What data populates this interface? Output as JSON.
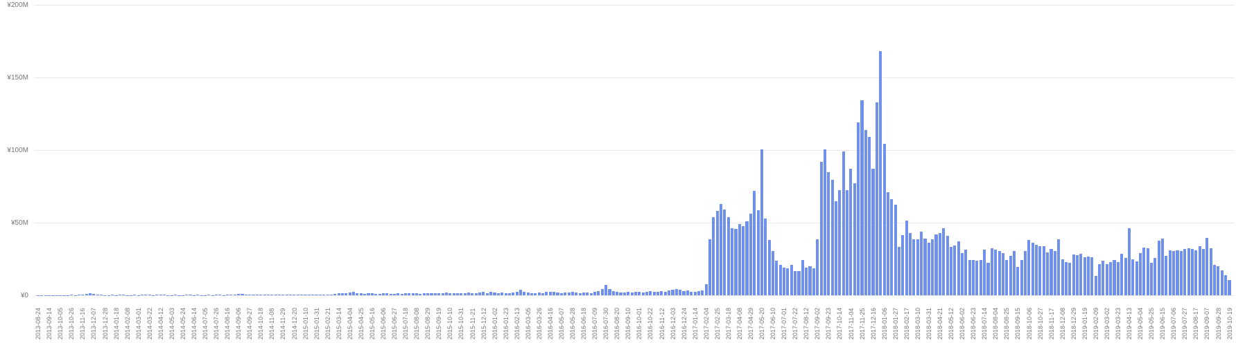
{
  "chart_data": {
    "type": "bar",
    "title": "",
    "unit": "JPY millions (M)",
    "legend": "none",
    "grid": "horizontal-only",
    "bar_color": "#7090ee",
    "gridline_color": "#e8e8e8",
    "axis_text_color": "#757575",
    "background_color": "#ffffff",
    "y_axis": {
      "min": 0,
      "max": 200,
      "tick_step_millions": 50,
      "tick_labels": [
        "¥200M",
        "¥150M",
        "¥100M",
        "¥50M",
        "¥0"
      ]
    },
    "x_axis": {
      "start_date": "2013-08-24",
      "bar_interval_days": 7,
      "label_every_n_bars": 3,
      "tick_labels": [
        "2013-08-24",
        "2013-09-14",
        "2013-10-05",
        "2013-10-26",
        "2013-11-16",
        "2013-12-07",
        "2013-12-28",
        "2014-01-18",
        "2014-02-08",
        "2014-03-01",
        "2014-03-22",
        "2014-04-12",
        "2014-05-03",
        "2014-05-24",
        "2014-06-14",
        "2014-07-05",
        "2014-07-26",
        "2014-08-16",
        "2014-09-06",
        "2014-09-27",
        "2014-10-18",
        "2014-11-08",
        "2014-11-29",
        "2014-12-20",
        "2015-01-10",
        "2015-01-31",
        "2015-02-21",
        "2015-03-14",
        "2015-04-04",
        "2015-04-25",
        "2015-05-16",
        "2015-06-06",
        "2015-06-27",
        "2015-07-18",
        "2015-08-08",
        "2015-08-29",
        "2015-09-19",
        "2015-10-10",
        "2015-10-31",
        "2015-11-21",
        "2015-12-12",
        "2016-01-02",
        "2016-01-23",
        "2016-02-13",
        "2016-03-05",
        "2016-03-26",
        "2016-04-16",
        "2016-05-07",
        "2016-05-28",
        "2016-06-18",
        "2016-07-09",
        "2016-07-30",
        "2016-08-20",
        "2016-09-10",
        "2016-10-01",
        "2016-10-22",
        "2016-11-12",
        "2016-12-03",
        "2016-12-24",
        "2017-01-14",
        "2017-02-04",
        "2017-02-25",
        "2017-03-18",
        "2017-04-08",
        "2017-04-29",
        "2017-05-20",
        "2017-06-10",
        "2017-07-01",
        "2017-07-22",
        "2017-08-12",
        "2017-09-02",
        "2017-09-23",
        "2017-10-14",
        "2017-11-04",
        "2017-11-25",
        "2017-12-16",
        "2018-01-06",
        "2018-01-27",
        "2018-02-17",
        "2018-03-10",
        "2018-03-31",
        "2018-04-21",
        "2018-05-12",
        "2018-06-02",
        "2018-06-23",
        "2018-07-14",
        "2018-08-04",
        "2018-08-25",
        "2018-09-15",
        "2018-10-06",
        "2018-10-27",
        "2018-11-17",
        "2018-12-08",
        "2018-12-29",
        "2019-01-19",
        "2019-02-09",
        "2019-03-02",
        "2019-03-23",
        "2019-04-13",
        "2019-05-04",
        "2019-05-25",
        "2019-06-15",
        "2019-07-06",
        "2019-07-27",
        "2019-08-17",
        "2019-09-07",
        "2019-09-28",
        "2019-10-19"
      ]
    },
    "values_millions": [
      0.1,
      0.1,
      0.15,
      0.2,
      0.1,
      0.1,
      0.2,
      0.15,
      0.1,
      0.3,
      0.2,
      0.4,
      0.3,
      1.0,
      1.2,
      0.8,
      0.5,
      0.3,
      0.2,
      0.2,
      0.3,
      0.2,
      0.4,
      0.3,
      0.2,
      0.2,
      0.3,
      0.2,
      0.5,
      0.4,
      0.3,
      0.2,
      0.3,
      0.4,
      0.3,
      0.2,
      0.2,
      0.3,
      0.2,
      0.2,
      0.4,
      0.3,
      0.2,
      0.3,
      0.2,
      0.2,
      0.3,
      0.2,
      0.4,
      0.3,
      0.2,
      0.3,
      0.4,
      0.5,
      0.8,
      1.0,
      0.7,
      0.4,
      0.3,
      0.3,
      0.4,
      0.5,
      0.4,
      0.3,
      0.4,
      0.5,
      0.4,
      0.3,
      0.4,
      0.5,
      0.6,
      0.4,
      0.5,
      0.4,
      0.5,
      0.6,
      0.5,
      0.6,
      0.7,
      0.6,
      0.8,
      1.3,
      1.6,
      1.2,
      2.0,
      2.4,
      1.6,
      1.2,
      1.0,
      1.2,
      1.4,
      1.1,
      1.0,
      1.3,
      1.2,
      1.0,
      1.1,
      1.3,
      1.0,
      1.2,
      1.4,
      1.2,
      1.5,
      1.1,
      1.3,
      1.6,
      1.2,
      1.4,
      1.2,
      1.5,
      1.8,
      1.3,
      1.2,
      1.5,
      1.3,
      1.6,
      2.0,
      1.5,
      1.3,
      1.8,
      2.2,
      1.6,
      2.4,
      1.8,
      1.5,
      2.0,
      1.6,
      1.4,
      1.8,
      2.6,
      3.8,
      2.4,
      1.8,
      1.6,
      1.5,
      1.8,
      1.6,
      2.4,
      2.6,
      2.2,
      1.8,
      1.6,
      2.0,
      1.7,
      2.4,
      1.8,
      1.5,
      1.7,
      2.0,
      1.6,
      2.2,
      2.8,
      4.2,
      7.0,
      4.5,
      3.0,
      2.2,
      1.8,
      2.0,
      2.4,
      2.0,
      2.6,
      2.2,
      1.8,
      2.4,
      2.8,
      2.2,
      2.6,
      3.0,
      2.4,
      3.4,
      4.0,
      4.4,
      3.6,
      2.8,
      3.2,
      2.6,
      2.2,
      2.8,
      3.4,
      7.5,
      38.5,
      54,
      58,
      63,
      59,
      54,
      46,
      45.5,
      49,
      47.5,
      51,
      56,
      72,
      58.5,
      100.5,
      53,
      38,
      30.5,
      24,
      21,
      19,
      18.5,
      21,
      16.5,
      16.5,
      24.5,
      19,
      20,
      18.5,
      38.5,
      92,
      100.5,
      85,
      79.5,
      65,
      72.5,
      99,
      72.5,
      87,
      77,
      119,
      134.5,
      114,
      109,
      87,
      133,
      168,
      104.5,
      71,
      66,
      62.5,
      33.5,
      41.5,
      51.5,
      43,
      38.5,
      38.5,
      44,
      39,
      36,
      38.5,
      42,
      43,
      46,
      41,
      33.5,
      34.5,
      37,
      29,
      31.5,
      24.5,
      24.5,
      24,
      24.5,
      31.5,
      22.5,
      32.5,
      31.5,
      30.5,
      29,
      24.5,
      27,
      30.5,
      19.5,
      24.5,
      30.5,
      38,
      36,
      35,
      34,
      33.8,
      29.5,
      32,
      30.5,
      38.5,
      25,
      23,
      22.5,
      28,
      27.5,
      28.5,
      26,
      26.5,
      26,
      13.5,
      21.5,
      24,
      21.5,
      23,
      24.5,
      23,
      28.5,
      25.5,
      46,
      25,
      23.5,
      29,
      33,
      32.5,
      22.5,
      25.5,
      37.5,
      39,
      27,
      31,
      30.5,
      31,
      30.5,
      32,
      32.5,
      32,
      31,
      34,
      32,
      39.5,
      32.5,
      21,
      20,
      17,
      14,
      10.5
    ]
  }
}
